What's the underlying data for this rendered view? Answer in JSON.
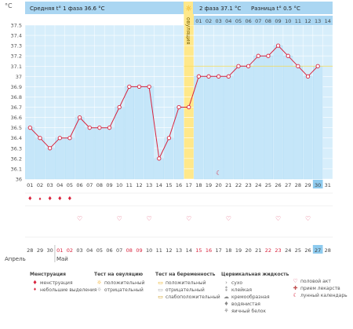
{
  "unit_label": "°C",
  "stats": {
    "phase1_label": "Средняя t° 1 фаза 36.6 °C",
    "phase2_label": "2 фаза 37.1 °C",
    "diff_label": "Разница t° 0.5 °C"
  },
  "ovulation_label": "овуляция",
  "colors": {
    "bg_blue": "#cde9fa",
    "bar_blue": "#c5e6f9",
    "header_blue": "#aad6f2",
    "ovulation_yellow": "#ffe88a",
    "line_red": "#d8223c",
    "highlight_blue": "#8ecbef",
    "phase_line_yellow": "#f4da56"
  },
  "chart_data": {
    "type": "line",
    "title": "",
    "xlabel": "",
    "ylabel": "°C",
    "ylim": [
      36.0,
      37.5
    ],
    "y_ticks": [
      "36",
      "36.1",
      "36.2",
      "36.3",
      "36.4",
      "36.5",
      "36.6",
      "36.7",
      "36.8",
      "36.9",
      "37",
      "37.1",
      "37.2",
      "37.3",
      "37.4",
      "37.5"
    ],
    "cycle_days": [
      "01",
      "02",
      "03",
      "04",
      "05",
      "06",
      "07",
      "08",
      "09",
      "10",
      "11",
      "12",
      "13",
      "14",
      "15",
      "16",
      "17",
      "18",
      "19",
      "20",
      "21",
      "22",
      "23",
      "24",
      "25",
      "26",
      "27",
      "28",
      "29",
      "30",
      "31"
    ],
    "post_ovulation_days": [
      "01",
      "02",
      "03",
      "04",
      "05",
      "06",
      "07",
      "08",
      "09",
      "10",
      "11",
      "12",
      "13",
      "14"
    ],
    "calendar_dates": [
      "28",
      "29",
      "30",
      "01",
      "02",
      "03",
      "04",
      "05",
      "06",
      "07",
      "08",
      "09",
      "10",
      "11",
      "12",
      "13",
      "14",
      "15",
      "16",
      "17",
      "18",
      "19",
      "20",
      "21",
      "22",
      "23",
      "24",
      "25",
      "26",
      "27",
      "28"
    ],
    "calendar_date_red": [
      false,
      false,
      false,
      true,
      true,
      false,
      false,
      false,
      false,
      false,
      true,
      true,
      false,
      false,
      false,
      false,
      false,
      true,
      true,
      false,
      false,
      false,
      false,
      false,
      true,
      true,
      false,
      false,
      false,
      false,
      false
    ],
    "month_labels": [
      {
        "label": "Апрель",
        "day_index": 0
      },
      {
        "label": "Май",
        "day_index": 3
      }
    ],
    "ovulation_day": 17,
    "highlight_day": 30,
    "phase1_avg": 36.6,
    "phase2_avg": 37.1,
    "series": [
      {
        "values": [
          36.5,
          36.4,
          36.3,
          36.4,
          36.4,
          36.6,
          36.5,
          36.5,
          36.5,
          36.7,
          36.9,
          36.9,
          36.9,
          36.2,
          36.4,
          36.7,
          36.7,
          37.0,
          37.0,
          37.0,
          37.0,
          37.1,
          37.1,
          37.2,
          37.2,
          37.3,
          37.2,
          37.1,
          37.0,
          37.1,
          null
        ]
      }
    ],
    "markers": {
      "menstruation_days": [
        1,
        3,
        4,
        5
      ],
      "spotting_days": [
        2
      ],
      "intercourse_days": [
        6,
        10,
        13,
        17,
        21,
        26,
        29
      ],
      "lunar_day": 20
    }
  },
  "legend": {
    "menstruation": {
      "title": "Менструация",
      "items": [
        "менструация",
        "небольшие выделения"
      ]
    },
    "ovulation_test": {
      "title": "Тест на овуляцию",
      "items": [
        "положительный",
        "отрицательный"
      ]
    },
    "pregnancy_test": {
      "title": "Тест на беременность",
      "items": [
        "положительный",
        "отрицательный",
        "слабоположительный"
      ]
    },
    "cervical_fluid": {
      "title": "Цервикальная жидкость",
      "items": [
        "сухо",
        "клейкая",
        "кремообразная",
        "водянистая",
        "яичный белок"
      ]
    },
    "other": {
      "items": [
        "половой акт",
        "прием лекарств",
        "лунный календарь"
      ]
    }
  }
}
